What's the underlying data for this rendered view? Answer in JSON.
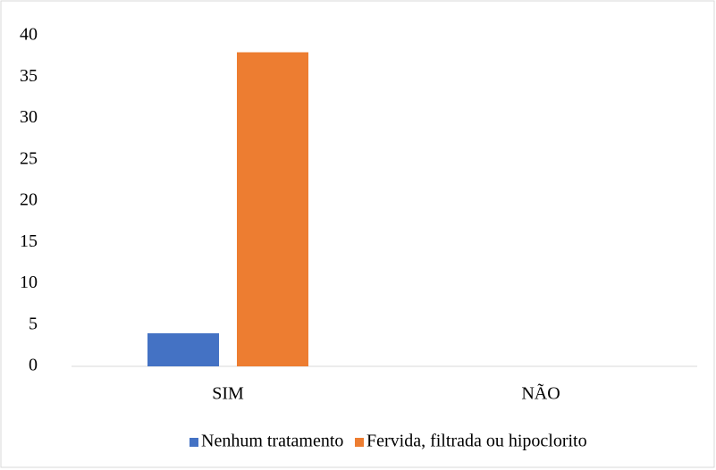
{
  "chart_data": {
    "type": "bar",
    "categories": [
      "SIM",
      "NÃO"
    ],
    "series": [
      {
        "name": "Nenhum tratamento",
        "color": "#4472c4",
        "values": [
          4,
          0
        ]
      },
      {
        "name": "Fervida, filtrada ou hipoclorito",
        "color": "#ed7d31",
        "values": [
          38,
          0
        ]
      }
    ],
    "ylim": [
      0,
      40
    ],
    "yticks": [
      0,
      5,
      10,
      15,
      20,
      25,
      30,
      35,
      40
    ],
    "grid": false,
    "legend": "bottom"
  }
}
